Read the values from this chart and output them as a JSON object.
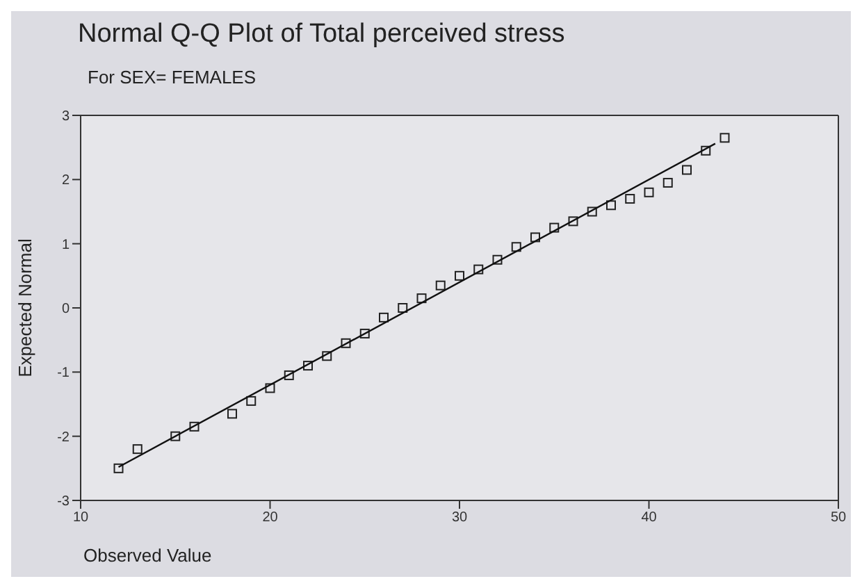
{
  "chart_data": {
    "type": "scatter",
    "title": "Normal Q-Q Plot of Total perceived  stress",
    "subtitle": "For SEX= FEMALES",
    "xlabel": "Observed Value",
    "ylabel": "Expected Normal",
    "marker": "square",
    "grid": false,
    "xlim": [
      10,
      50
    ],
    "xticks": [
      10,
      20,
      30,
      40,
      50
    ],
    "ylim": [
      -3,
      3
    ],
    "yticks": [
      -3,
      -2,
      -1,
      0,
      1,
      2,
      3
    ],
    "series": [
      {
        "color": "#222222",
        "x": [
          12,
          13,
          15,
          16,
          18,
          19,
          20,
          21,
          22,
          23,
          24,
          25,
          26,
          27,
          28,
          29,
          30,
          31,
          32,
          33,
          34,
          35,
          36,
          37,
          38,
          39,
          40,
          41,
          42,
          43,
          44
        ],
        "values": [
          -2.5,
          -2.2,
          -2.0,
          -1.85,
          -1.65,
          -1.45,
          -1.25,
          -1.05,
          -0.9,
          -0.75,
          -0.55,
          -0.4,
          -0.15,
          0.0,
          0.15,
          0.35,
          0.5,
          0.6,
          0.75,
          0.95,
          1.1,
          1.25,
          1.35,
          1.5,
          1.6,
          1.7,
          1.8,
          1.95,
          2.15,
          2.45,
          2.65
        ]
      },
      {
        "type": "line",
        "marker": "none",
        "color": "#111111",
        "x": [
          12,
          43.5
        ],
        "values": [
          -2.48,
          2.56
        ]
      }
    ]
  }
}
